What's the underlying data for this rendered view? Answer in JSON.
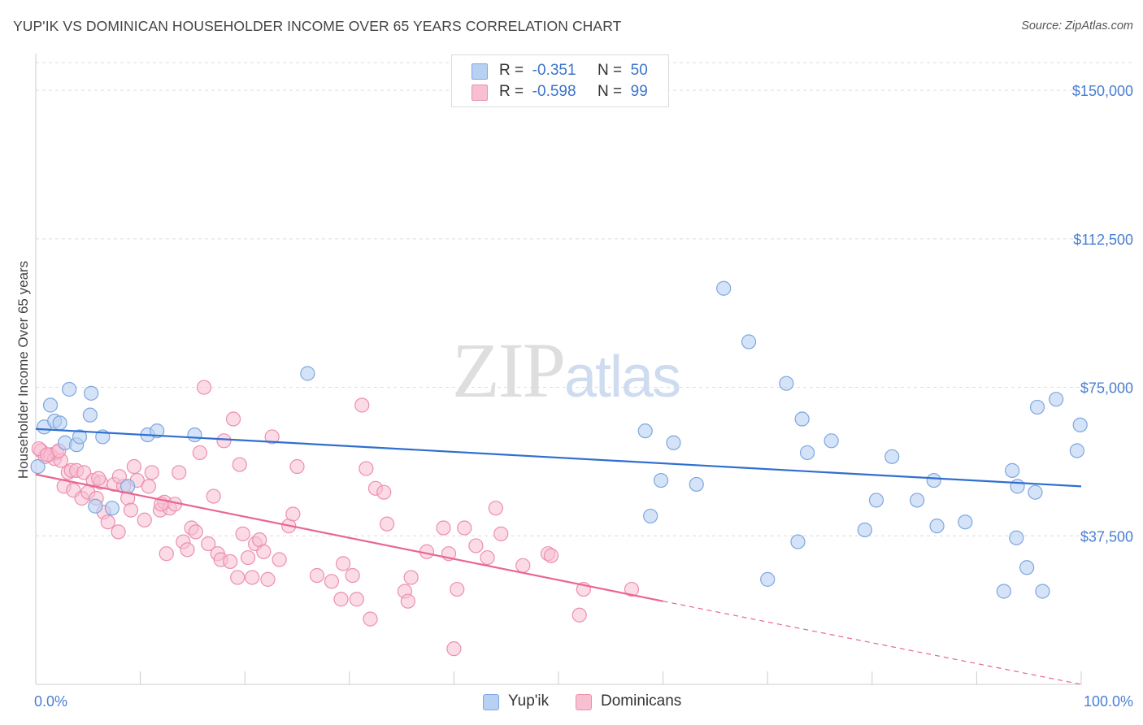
{
  "title": "YUP'IK VS DOMINICAN HOUSEHOLDER INCOME OVER 65 YEARS CORRELATION CHART",
  "source": "Source: ZipAtlas.com",
  "watermark": {
    "zip": "ZIP",
    "atlas": "atlas"
  },
  "legend": [
    {
      "r_label": "R =",
      "r_value": "-0.351",
      "n_label": "N =",
      "n_value": "50"
    },
    {
      "r_label": "R =",
      "r_value": "-0.598",
      "n_label": "N =",
      "n_value": "99"
    }
  ],
  "bottom_legend": [
    {
      "label": "Yup'ik"
    },
    {
      "label": "Dominicans"
    }
  ],
  "colors": {
    "yupik_fill": "#b8d1f3",
    "yupik_stroke": "#7ea7de",
    "yupik_line": "#2f6fd0",
    "dom_fill": "#f7c0d1",
    "dom_stroke": "#ec8fae",
    "dom_line": "#e9678f",
    "grid": "#dddddd",
    "axis_text": "#4a7fd4"
  },
  "chart_data": {
    "type": "scatter",
    "title": "YUP'IK VS DOMINICAN HOUSEHOLDER INCOME OVER 65 YEARS CORRELATION CHART",
    "xlabel": "",
    "ylabel": "Householder Income Over 65 years",
    "xlim": [
      0,
      100
    ],
    "ylim": [
      0,
      157000
    ],
    "x_tick_labels": [
      "0.0%",
      "100.0%"
    ],
    "y_ticks": [
      37500,
      75000,
      112500,
      150000
    ],
    "y_tick_labels": [
      "$37,500",
      "$75,000",
      "$112,500",
      "$150,000"
    ],
    "grid": true,
    "legend_position": "top-center",
    "series": [
      {
        "name": "Yup'ik",
        "points": [
          [
            0.2,
            55000
          ],
          [
            0.8,
            65000
          ],
          [
            1.4,
            70500
          ],
          [
            1.8,
            66500
          ],
          [
            2.3,
            66000
          ],
          [
            2.8,
            61000
          ],
          [
            3.2,
            74500
          ],
          [
            3.9,
            60500
          ],
          [
            4.2,
            62500
          ],
          [
            5.2,
            68000
          ],
          [
            5.3,
            73500
          ],
          [
            5.7,
            45000
          ],
          [
            6.4,
            62500
          ],
          [
            7.3,
            44500
          ],
          [
            8.8,
            50000
          ],
          [
            10.7,
            63000
          ],
          [
            11.6,
            64000
          ],
          [
            15.2,
            63000
          ],
          [
            26.0,
            78500
          ],
          [
            58.3,
            64000
          ],
          [
            58.8,
            42500
          ],
          [
            59.8,
            51500
          ],
          [
            61.0,
            61000
          ],
          [
            63.2,
            50500
          ],
          [
            65.8,
            100000
          ],
          [
            68.2,
            86500
          ],
          [
            70.0,
            26500
          ],
          [
            71.8,
            76000
          ],
          [
            72.9,
            36000
          ],
          [
            73.3,
            67000
          ],
          [
            73.8,
            58500
          ],
          [
            76.1,
            61500
          ],
          [
            79.3,
            39000
          ],
          [
            80.4,
            46500
          ],
          [
            81.9,
            57500
          ],
          [
            84.3,
            46500
          ],
          [
            85.9,
            51500
          ],
          [
            86.2,
            40000
          ],
          [
            88.9,
            41000
          ],
          [
            92.6,
            23500
          ],
          [
            93.4,
            54000
          ],
          [
            93.8,
            37000
          ],
          [
            93.9,
            50000
          ],
          [
            94.8,
            29500
          ],
          [
            95.6,
            48500
          ],
          [
            95.8,
            70000
          ],
          [
            96.3,
            23500
          ],
          [
            97.6,
            72000
          ],
          [
            99.6,
            59000
          ],
          [
            99.9,
            65500
          ]
        ],
        "trend": [
          [
            0,
            64500
          ],
          [
            100,
            50000
          ]
        ]
      },
      {
        "name": "Dominicans",
        "points": [
          [
            0.5,
            59000
          ],
          [
            0.9,
            57500
          ],
          [
            1.4,
            58000
          ],
          [
            1.8,
            57000
          ],
          [
            2.0,
            58500
          ],
          [
            2.4,
            56500
          ],
          [
            2.7,
            50000
          ],
          [
            3.1,
            53500
          ],
          [
            3.4,
            54000
          ],
          [
            3.6,
            49000
          ],
          [
            3.9,
            54000
          ],
          [
            4.4,
            47000
          ],
          [
            4.6,
            53500
          ],
          [
            5.0,
            48500
          ],
          [
            5.5,
            51500
          ],
          [
            5.8,
            47000
          ],
          [
            6.2,
            51000
          ],
          [
            6.5,
            43500
          ],
          [
            6.9,
            41000
          ],
          [
            7.5,
            50500
          ],
          [
            7.9,
            38500
          ],
          [
            8.4,
            50000
          ],
          [
            8.8,
            47000
          ],
          [
            9.1,
            44000
          ],
          [
            9.4,
            55000
          ],
          [
            9.7,
            51500
          ],
          [
            10.4,
            41500
          ],
          [
            10.8,
            50000
          ],
          [
            11.1,
            53500
          ],
          [
            11.9,
            44000
          ],
          [
            12.3,
            46000
          ],
          [
            12.5,
            33000
          ],
          [
            12.8,
            44500
          ],
          [
            13.3,
            45500
          ],
          [
            13.7,
            53500
          ],
          [
            14.1,
            36000
          ],
          [
            14.5,
            34000
          ],
          [
            14.9,
            39500
          ],
          [
            15.3,
            38500
          ],
          [
            15.7,
            58500
          ],
          [
            16.1,
            75000
          ],
          [
            16.5,
            35500
          ],
          [
            17.0,
            47500
          ],
          [
            17.4,
            33000
          ],
          [
            17.7,
            31500
          ],
          [
            18.0,
            61500
          ],
          [
            18.6,
            31000
          ],
          [
            18.9,
            67000
          ],
          [
            19.3,
            27000
          ],
          [
            19.5,
            55500
          ],
          [
            19.8,
            38000
          ],
          [
            20.3,
            32000
          ],
          [
            20.7,
            27000
          ],
          [
            21.0,
            35500
          ],
          [
            21.4,
            36500
          ],
          [
            21.8,
            33500
          ],
          [
            22.2,
            26500
          ],
          [
            22.6,
            62500
          ],
          [
            23.3,
            31500
          ],
          [
            24.2,
            40000
          ],
          [
            24.6,
            43000
          ],
          [
            25.0,
            55000
          ],
          [
            26.9,
            27500
          ],
          [
            28.3,
            26000
          ],
          [
            29.2,
            21500
          ],
          [
            29.4,
            30500
          ],
          [
            30.3,
            27500
          ],
          [
            30.7,
            21500
          ],
          [
            31.2,
            70500
          ],
          [
            31.6,
            54500
          ],
          [
            32.0,
            16500
          ],
          [
            32.5,
            49500
          ],
          [
            33.3,
            48500
          ],
          [
            33.6,
            40500
          ],
          [
            35.3,
            23500
          ],
          [
            35.6,
            21000
          ],
          [
            35.9,
            27000
          ],
          [
            37.4,
            33500
          ],
          [
            39.0,
            39500
          ],
          [
            39.5,
            33000
          ],
          [
            40.0,
            9000
          ],
          [
            40.3,
            24000
          ],
          [
            41.0,
            39500
          ],
          [
            42.1,
            35000
          ],
          [
            43.2,
            32000
          ],
          [
            44.0,
            44500
          ],
          [
            44.5,
            38000
          ],
          [
            46.6,
            30000
          ],
          [
            49.0,
            33000
          ],
          [
            49.3,
            32500
          ],
          [
            52.0,
            17500
          ],
          [
            52.4,
            24000
          ],
          [
            57.0,
            24000
          ],
          [
            0.3,
            59500
          ],
          [
            1.1,
            58000
          ],
          [
            2.2,
            59000
          ],
          [
            6.0,
            52000
          ],
          [
            8.0,
            52500
          ],
          [
            12.0,
            45500
          ]
        ],
        "trend": [
          [
            0,
            53000
          ],
          [
            60,
            21000
          ]
        ],
        "trend_extension": [
          [
            60,
            21000
          ],
          [
            100,
            0
          ]
        ]
      }
    ]
  }
}
